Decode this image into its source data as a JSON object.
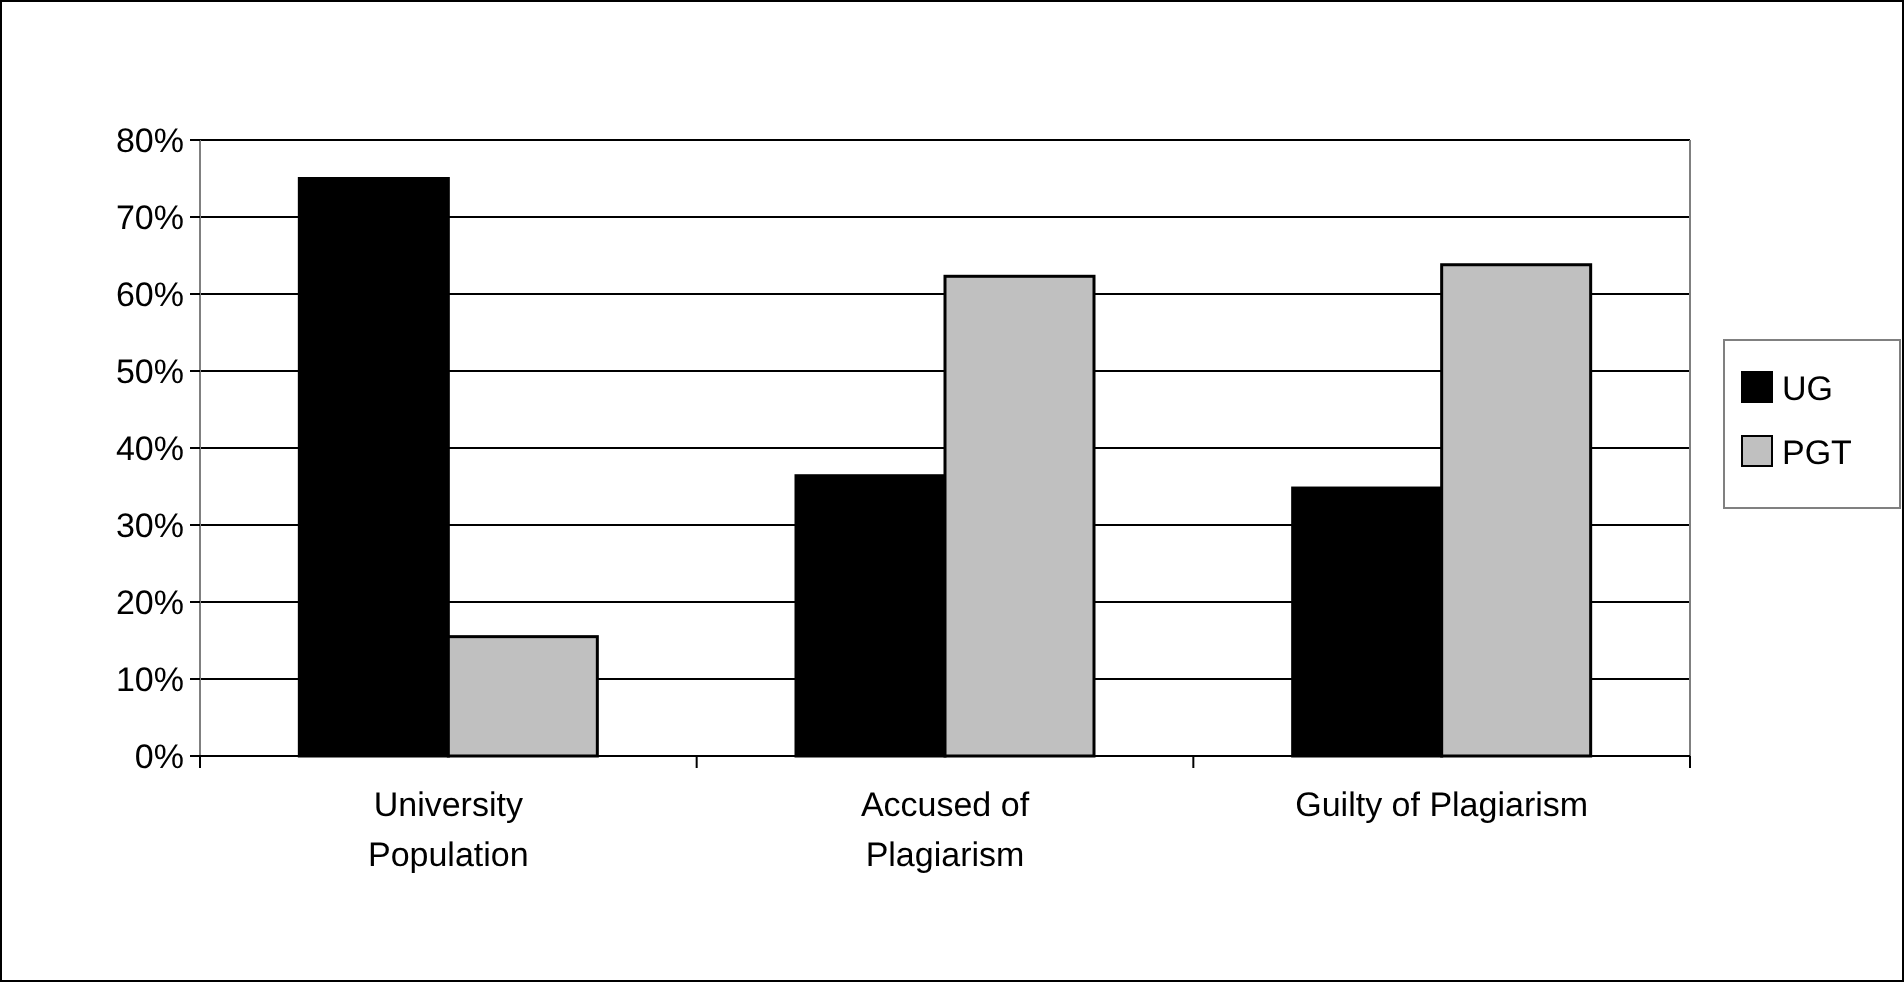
{
  "chart_data": {
    "type": "bar",
    "categories": [
      "University Population",
      "Accused of Plagiarism",
      "Guilty of Plagiarism"
    ],
    "series": [
      {
        "name": "UG",
        "color": "#000000",
        "values": [
          75,
          36.4,
          34.8
        ]
      },
      {
        "name": "PGT",
        "color": "#c0c0c0",
        "values": [
          15.5,
          62.3,
          63.8
        ]
      }
    ],
    "ylim": [
      0,
      80
    ],
    "yticks": [
      {
        "value": 0,
        "label": "0%"
      },
      {
        "value": 10,
        "label": "10%"
      },
      {
        "value": 20,
        "label": "20%"
      },
      {
        "value": 30,
        "label": "30%"
      },
      {
        "value": 40,
        "label": "40%"
      },
      {
        "value": 50,
        "label": "50%"
      },
      {
        "value": 60,
        "label": "60%"
      },
      {
        "value": 70,
        "label": "70%"
      },
      {
        "value": 80,
        "label": "80%"
      }
    ],
    "grid": "y",
    "legend": "right"
  }
}
